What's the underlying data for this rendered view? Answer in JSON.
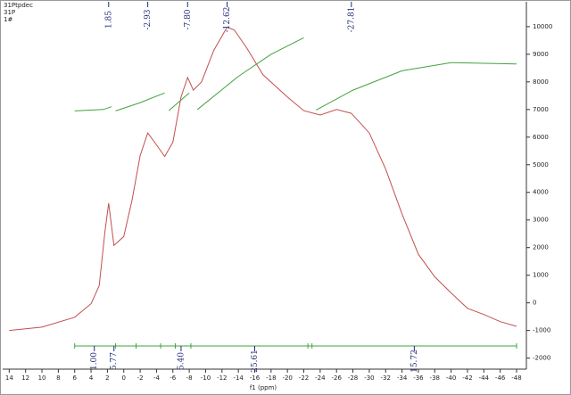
{
  "chart_data": {
    "type": "spectrum",
    "header_lines": [
      "31Ptpdec",
      "31P",
      "1#"
    ],
    "x_label": "f1 (ppm)",
    "xlim": [
      14.8,
      -49.2
    ],
    "ylim": [
      -2400,
      10900
    ],
    "xticks": [
      14,
      12,
      10,
      8,
      6,
      4,
      2,
      0,
      -2,
      -4,
      -6,
      -8,
      -10,
      -12,
      -14,
      -16,
      -18,
      -20,
      -22,
      -24,
      -26,
      -28,
      -30,
      -32,
      -34,
      -36,
      -38,
      -40,
      -42,
      -44,
      -46,
      -48
    ],
    "yticks": [
      -2000,
      -1000,
      0,
      1000,
      2000,
      3000,
      4000,
      5000,
      6000,
      7000,
      8000,
      9000,
      10000
    ],
    "series": [
      {
        "color": "#c0504d",
        "x": [
          14,
          10,
          6,
          4,
          3,
          2.3,
          1.85,
          1.2,
          0,
          -1,
          -2,
          -2.93,
          -4,
          -5,
          -6,
          -7,
          -7.8,
          -8.5,
          -9.5,
          -11,
          -12.62,
          -13.5,
          -15,
          -17,
          -20,
          -22,
          -24,
          -26,
          -27.81,
          -30,
          -32,
          -34,
          -36,
          -38,
          -40,
          -42,
          -44,
          -46,
          -48
        ],
        "values": [
          -1000,
          -880,
          -520,
          -30,
          620,
          2570,
          3610,
          2080,
          2400,
          3700,
          5330,
          6150,
          5720,
          5300,
          5820,
          7450,
          8160,
          7700,
          8000,
          9140,
          9980,
          9880,
          9240,
          8260,
          7450,
          6960,
          6800,
          7000,
          6860,
          6150,
          4850,
          3220,
          1760,
          940,
          360,
          -200,
          -420,
          -680,
          -850
        ]
      },
      {
        "color": "#3fa33f",
        "x": [
          6,
          2.5,
          1.5,
          null,
          1,
          -2,
          -5,
          null,
          -5.5,
          -8,
          null,
          -9,
          -14,
          -18,
          -22,
          null,
          -23.5,
          -28,
          -34,
          -40,
          -48
        ],
        "values": [
          6950,
          7000,
          7100,
          null,
          6950,
          7250,
          7600,
          null,
          6960,
          7600,
          null,
          7000,
          8200,
          9000,
          9600,
          null,
          6980,
          7700,
          8400,
          8700,
          8650
        ]
      }
    ],
    "peaks": {
      "values": [
        1.85,
        -2.93,
        -7.8,
        -12.62,
        -27.81
      ],
      "value_labels": [
        "1.85",
        "-2.93",
        "-7.80",
        "-12.62",
        "-27.81"
      ]
    },
    "integral_edges": [
      6,
      1,
      -1.5,
      -4.5,
      -6.3,
      -8.2,
      -22.5,
      -23,
      -48
    ],
    "integrals": {
      "x": [
        3.6,
        1.2,
        -7,
        -16,
        -35.5
      ],
      "values": [
        1,
        5.77,
        5.4,
        25.61,
        15.72
      ],
      "value_labels": [
        "1.00",
        "5.77",
        "5.40",
        "25.61",
        "15.72"
      ]
    }
  }
}
